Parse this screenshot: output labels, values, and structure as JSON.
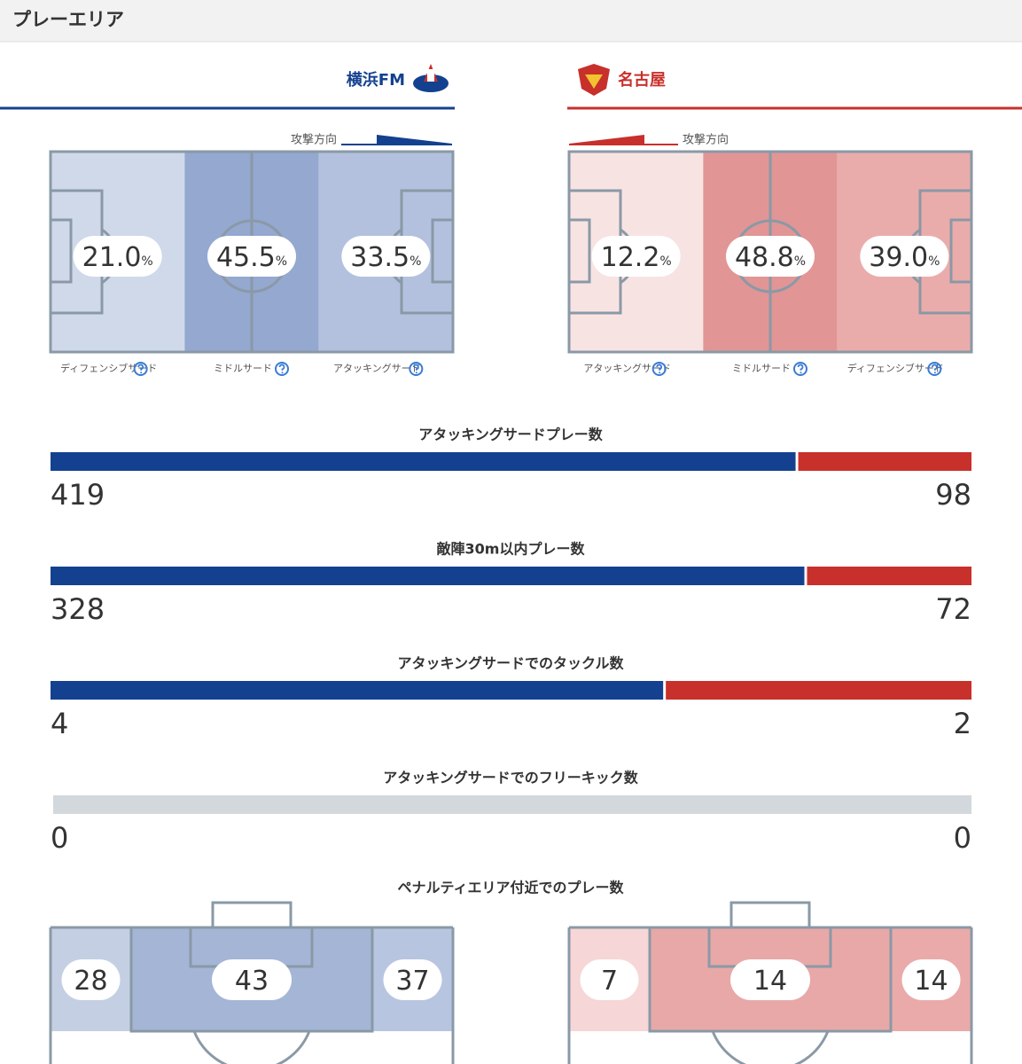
{
  "header": {
    "title": "プレーエリア"
  },
  "teams": [
    {
      "name": "横浜FM"
    },
    {
      "name": "名古屋"
    }
  ],
  "direction_label": "攻撃方向",
  "pitches": [
    {
      "zones": [
        {
          "label": "ディフェンシブサード",
          "value": 21,
          "value_label": "21.0",
          "unit": "%",
          "color": "#d0d9e9"
        },
        {
          "label": "ミドルサード",
          "value": 45.5,
          "value_label": "45.5",
          "unit": "%",
          "color": "#94a8d0"
        },
        {
          "label": "アタッキングサード",
          "value": 33.5,
          "value_label": "33.5",
          "unit": "%",
          "color": "#b3c1de"
        }
      ]
    },
    {
      "zones": [
        {
          "label": "アタッキングサード",
          "value": 12.2,
          "value_label": "12.2",
          "unit": "%",
          "color": "#f8e3e3"
        },
        {
          "label": "ミドルサード",
          "value": 48.8,
          "value_label": "48.8",
          "unit": "%",
          "color": "#e19595"
        },
        {
          "label": "ディフェンシブサード",
          "value": 39,
          "value_label": "39.0",
          "unit": "%",
          "color": "#eaacab"
        }
      ]
    }
  ],
  "stats": [
    {
      "label": "アタッキングサードプレー数",
      "home": 419,
      "away": 98
    },
    {
      "label": "敵陣30m以内プレー数",
      "home": 328,
      "away": 72
    },
    {
      "label": "アタッキングサードでのタックル数",
      "home": 4,
      "away": 2
    },
    {
      "label": "アタッキングサードでのフリーキック数",
      "home": 0,
      "away": 0
    }
  ],
  "penalty": {
    "title": "ペナルティエリア付近でのプレー数",
    "home": {
      "values": [
        28,
        43,
        37
      ],
      "colors": [
        "#c4cfe4",
        "#a4b5d6",
        "#b8c5e0"
      ]
    },
    "away": {
      "values": [
        7,
        14,
        14
      ],
      "colors": [
        "#f6d6d6",
        "#e8a8a8",
        "#eaaaaa"
      ]
    }
  },
  "colors": {
    "home": "#14418f",
    "away": "#c8302b",
    "empty": "#d2d8dc",
    "line": "#8a99a6"
  }
}
